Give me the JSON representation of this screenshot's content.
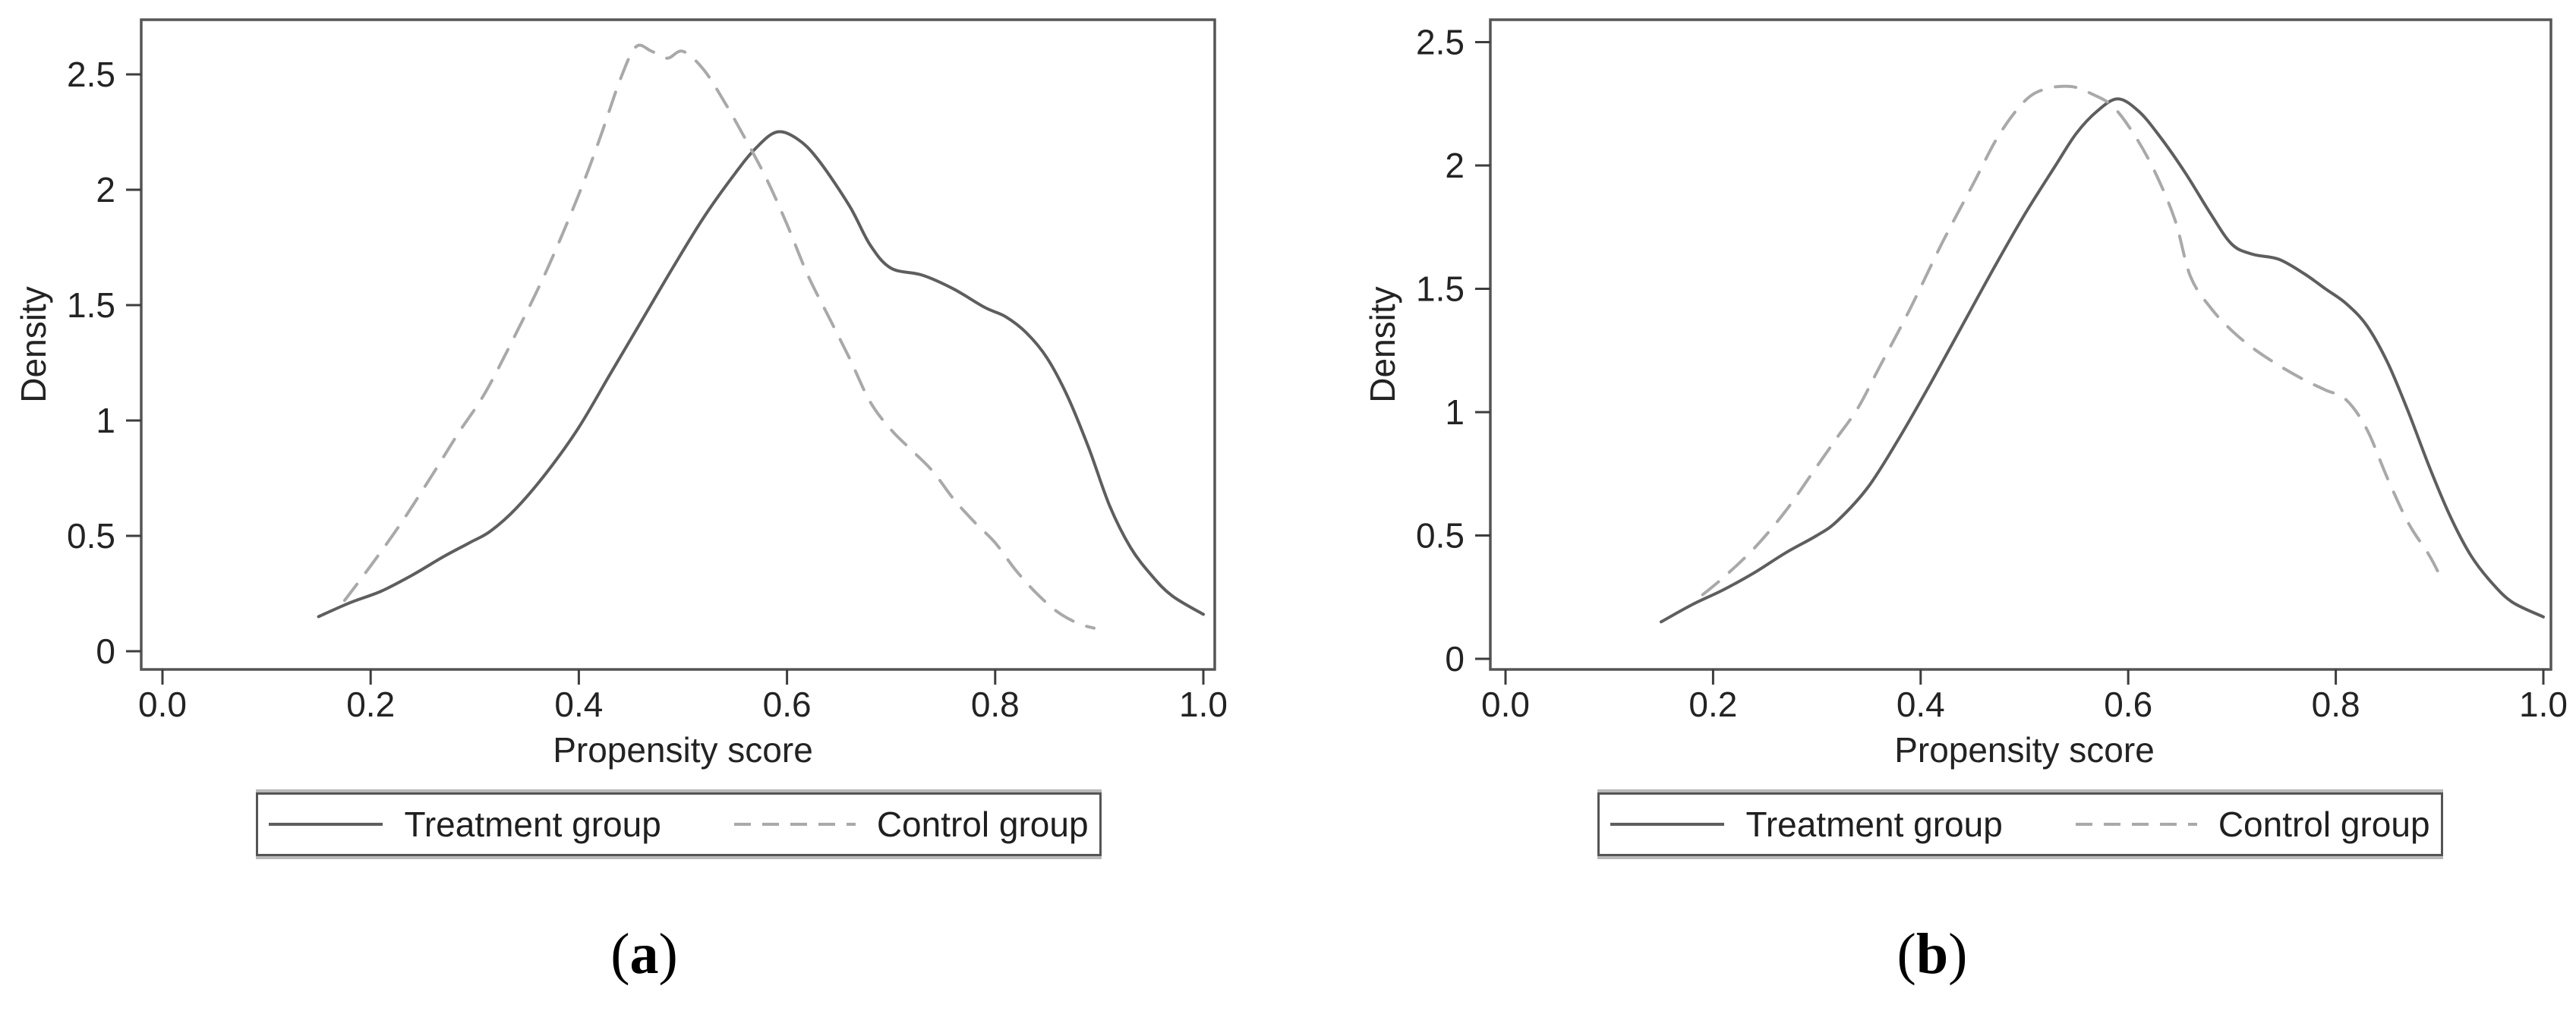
{
  "figure": {
    "background": "#ffffff",
    "panels": [
      {
        "caption_text": "(a)",
        "caption_open": "(",
        "caption_letter": "a",
        "caption_close": ")",
        "x_axis": {
          "label": "Propensity score",
          "tick_labels": [
            "0.0",
            "0.2",
            "0.4",
            "0.6",
            "0.8",
            "1.0"
          ],
          "tick_values": [
            0,
            0.2,
            0.4,
            0.6,
            0.8,
            1.0
          ]
        },
        "y_axis": {
          "label": "Density",
          "tick_labels": [
            "0",
            "0.5",
            "1",
            "1.5",
            "2",
            "2.5"
          ],
          "tick_values": [
            0,
            0.5,
            1,
            1.5,
            2,
            2.5
          ]
        },
        "legend": {
          "items": [
            {
              "label": "Treatment group",
              "line_style": "solid",
              "color": "#5e5e5e"
            },
            {
              "label": "Control group",
              "line_style": "dashed",
              "color": "#a9a9a9"
            }
          ]
        }
      },
      {
        "caption_text": "(b)",
        "caption_open": "(",
        "caption_letter": "b",
        "caption_close": ")",
        "x_axis": {
          "label": "Propensity score",
          "tick_labels": [
            "0.0",
            "0.2",
            "0.4",
            "0.6",
            "0.8",
            "1.0"
          ],
          "tick_values": [
            0,
            0.2,
            0.4,
            0.6,
            0.8,
            1.0
          ]
        },
        "y_axis": {
          "label": "Density",
          "tick_labels": [
            "0",
            "0.5",
            "1",
            "1.5",
            "2",
            "2.5"
          ],
          "tick_values": [
            0,
            0.5,
            1,
            1.5,
            2,
            2.5
          ]
        },
        "legend": {
          "items": [
            {
              "label": "Treatment group",
              "line_style": "solid",
              "color": "#5e5e5e"
            },
            {
              "label": "Control group",
              "line_style": "dashed",
              "color": "#a9a9a9"
            }
          ]
        }
      }
    ]
  },
  "chart_data": [
    {
      "type": "line",
      "title": "",
      "xlabel": "Propensity score",
      "ylabel": "Density",
      "xlim": [
        0,
        1.0
      ],
      "ylim": [
        0,
        2.75
      ],
      "grid": false,
      "legend_position": "bottom",
      "series": [
        {
          "name": "Treatment group",
          "style": "solid",
          "color": "#5e5e5e",
          "x": [
            0.15,
            0.18,
            0.21,
            0.24,
            0.27,
            0.295,
            0.315,
            0.34,
            0.37,
            0.4,
            0.43,
            0.46,
            0.49,
            0.52,
            0.55,
            0.57,
            0.59,
            0.61,
            0.63,
            0.66,
            0.68,
            0.7,
            0.73,
            0.76,
            0.79,
            0.81,
            0.83,
            0.85,
            0.87,
            0.89,
            0.91,
            0.93,
            0.95,
            0.97,
            1.0
          ],
          "y": [
            0.15,
            0.21,
            0.26,
            0.33,
            0.41,
            0.47,
            0.52,
            0.62,
            0.78,
            0.97,
            1.2,
            1.43,
            1.66,
            1.88,
            2.07,
            2.18,
            2.25,
            2.22,
            2.13,
            1.93,
            1.76,
            1.66,
            1.63,
            1.57,
            1.49,
            1.45,
            1.38,
            1.27,
            1.1,
            0.88,
            0.63,
            0.45,
            0.33,
            0.24,
            0.16
          ]
        },
        {
          "name": "Control group",
          "style": "dashed",
          "color": "#a9a9a9",
          "x": [
            0.175,
            0.2,
            0.23,
            0.26,
            0.285,
            0.31,
            0.34,
            0.37,
            0.4,
            0.42,
            0.44,
            0.455,
            0.47,
            0.485,
            0.5,
            0.52,
            0.54,
            0.56,
            0.58,
            0.6,
            0.62,
            0.64,
            0.66,
            0.68,
            0.7,
            0.72,
            0.74,
            0.76,
            0.78,
            0.8,
            0.82,
            0.84,
            0.86,
            0.88,
            0.895
          ],
          "y": [
            0.22,
            0.37,
            0.56,
            0.77,
            0.95,
            1.12,
            1.38,
            1.66,
            1.98,
            2.22,
            2.48,
            2.62,
            2.6,
            2.57,
            2.6,
            2.52,
            2.38,
            2.22,
            2.05,
            1.85,
            1.63,
            1.45,
            1.27,
            1.08,
            0.96,
            0.87,
            0.78,
            0.66,
            0.56,
            0.47,
            0.35,
            0.25,
            0.17,
            0.12,
            0.1
          ]
        }
      ]
    },
    {
      "type": "line",
      "title": "",
      "xlabel": "Propensity score",
      "ylabel": "Density",
      "xlim": [
        0,
        1.0
      ],
      "ylim": [
        0,
        2.6
      ],
      "grid": false,
      "legend_position": "bottom",
      "series": [
        {
          "name": "Treatment group",
          "style": "solid",
          "color": "#5e5e5e",
          "x": [
            0.15,
            0.18,
            0.21,
            0.24,
            0.27,
            0.3,
            0.32,
            0.35,
            0.38,
            0.41,
            0.44,
            0.47,
            0.5,
            0.53,
            0.55,
            0.57,
            0.59,
            0.61,
            0.63,
            0.655,
            0.68,
            0.7,
            0.72,
            0.745,
            0.77,
            0.79,
            0.81,
            0.83,
            0.85,
            0.87,
            0.89,
            0.91,
            0.93,
            0.95,
            0.97,
            1.0
          ],
          "y": [
            0.15,
            0.22,
            0.28,
            0.35,
            0.43,
            0.5,
            0.56,
            0.7,
            0.9,
            1.12,
            1.35,
            1.58,
            1.8,
            2.0,
            2.13,
            2.22,
            2.27,
            2.22,
            2.12,
            1.97,
            1.8,
            1.68,
            1.64,
            1.62,
            1.56,
            1.5,
            1.44,
            1.35,
            1.2,
            1.0,
            0.78,
            0.58,
            0.42,
            0.31,
            0.23,
            0.17
          ]
        },
        {
          "name": "Control group",
          "style": "dashed",
          "color": "#a9a9a9",
          "x": [
            0.19,
            0.21,
            0.24,
            0.27,
            0.3,
            0.32,
            0.34,
            0.36,
            0.39,
            0.42,
            0.45,
            0.475,
            0.5,
            0.52,
            0.545,
            0.565,
            0.585,
            0.605,
            0.625,
            0.645,
            0.66,
            0.68,
            0.7,
            0.72,
            0.745,
            0.77,
            0.79,
            0.81,
            0.83,
            0.85,
            0.87,
            0.89,
            0.9
          ],
          "y": [
            0.26,
            0.33,
            0.45,
            0.6,
            0.78,
            0.9,
            1.02,
            1.18,
            1.42,
            1.68,
            1.92,
            2.12,
            2.26,
            2.31,
            2.32,
            2.29,
            2.24,
            2.13,
            1.98,
            1.78,
            1.55,
            1.42,
            1.33,
            1.26,
            1.19,
            1.13,
            1.09,
            1.05,
            0.93,
            0.73,
            0.55,
            0.42,
            0.34
          ]
        }
      ]
    }
  ]
}
